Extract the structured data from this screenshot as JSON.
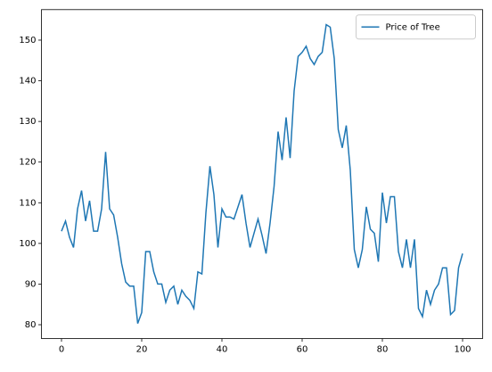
{
  "chart_data": {
    "type": "line",
    "x": [
      0,
      1,
      2,
      3,
      4,
      5,
      6,
      7,
      8,
      9,
      10,
      11,
      12,
      13,
      14,
      15,
      16,
      17,
      18,
      19,
      20,
      21,
      22,
      23,
      24,
      25,
      26,
      27,
      28,
      29,
      30,
      31,
      32,
      33,
      34,
      35,
      36,
      37,
      38,
      39,
      40,
      41,
      42,
      43,
      44,
      45,
      46,
      47,
      48,
      49,
      50,
      51,
      52,
      53,
      54,
      55,
      56,
      57,
      58,
      59,
      60,
      61,
      62,
      63,
      64,
      65,
      66,
      67,
      68,
      69,
      70,
      71,
      72,
      73,
      74,
      75,
      76,
      77,
      78,
      79,
      80,
      81,
      82,
      83,
      84,
      85,
      86,
      87,
      88,
      89,
      90,
      91,
      92,
      93,
      94,
      95,
      96,
      97,
      98,
      99,
      100
    ],
    "series": [
      {
        "name": "Price of Tree",
        "color": "#1f77b4",
        "values": [
          103,
          105.5,
          101.5,
          99,
          108.5,
          113,
          105.5,
          110.5,
          103,
          103,
          108.5,
          122.5,
          108.5,
          107,
          101.5,
          95,
          90.5,
          89.5,
          89.5,
          80.3,
          83,
          98,
          98,
          93,
          90,
          90,
          85.5,
          88.5,
          89.5,
          85,
          88.5,
          87,
          86,
          84,
          93,
          92.5,
          107.5,
          119,
          112,
          99,
          108.5,
          106.5,
          106.5,
          106,
          109,
          112,
          105,
          99,
          102.5,
          106,
          102,
          97.5,
          105,
          114,
          127.5,
          120.5,
          131,
          121,
          137.5,
          146,
          147,
          148.5,
          145.5,
          144,
          146,
          147,
          153.8,
          153.2,
          145.5,
          128,
          123.5,
          129,
          118,
          98.5,
          94,
          98.5,
          109,
          103.5,
          102.5,
          95.5,
          112.5,
          105,
          111.5,
          111.5,
          98,
          94,
          101,
          94,
          101,
          84,
          82,
          88.5,
          85,
          88.5,
          90,
          94,
          94,
          82.5,
          83.5,
          94,
          97.5
        ]
      }
    ],
    "xlim": [
      -5,
      105
    ],
    "ylim": [
      76.6,
      157.5
    ],
    "xticks": [
      0,
      20,
      40,
      60,
      80,
      100
    ],
    "yticks": [
      80,
      90,
      100,
      110,
      120,
      130,
      140,
      150
    ],
    "legend": "upper right"
  }
}
